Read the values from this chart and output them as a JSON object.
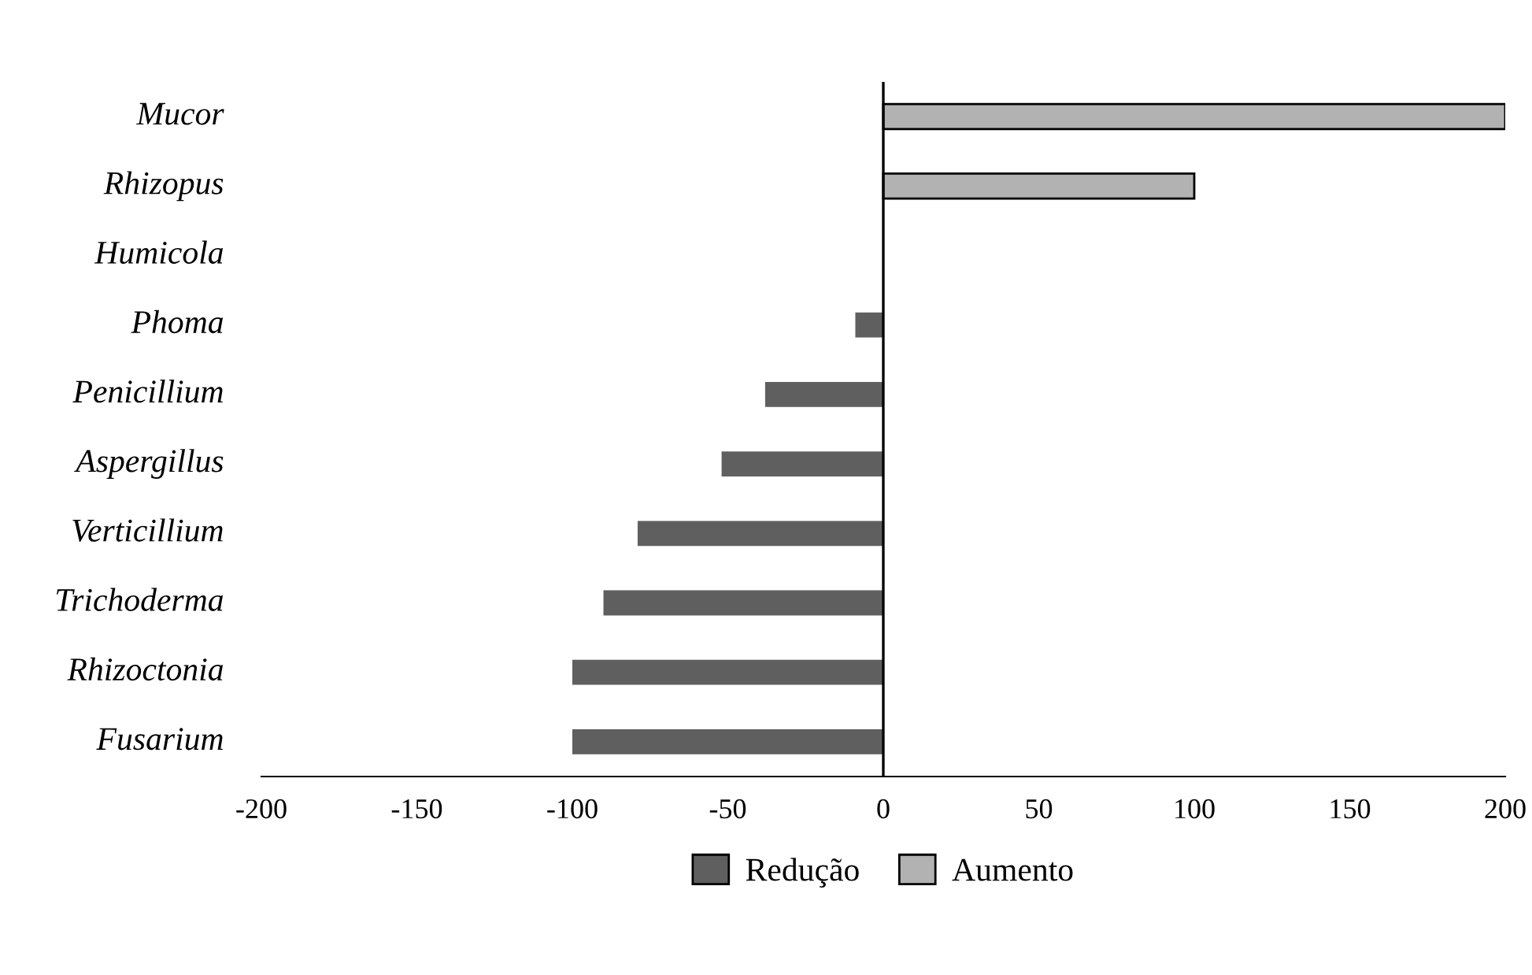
{
  "chart_data": {
    "type": "bar",
    "orientation": "horizontal",
    "categories": [
      "Mucor",
      "Rhizopus",
      "Humicola",
      "Phoma",
      "Penicillium",
      "Aspergillus",
      "Verticillium",
      "Trichoderma",
      "Rhizoctonia",
      "Fusarium"
    ],
    "series": [
      {
        "name": "Redução",
        "color": "#5f5f5f",
        "values": [
          null,
          null,
          0,
          -9,
          -38,
          -52,
          -79,
          -90,
          -100,
          -100
        ]
      },
      {
        "name": "Aumento",
        "color": "#b2b2b2",
        "values": [
          200,
          100,
          null,
          null,
          null,
          null,
          null,
          null,
          null,
          null
        ]
      }
    ],
    "xlim": [
      -200,
      200
    ],
    "xticks": [
      -200,
      -150,
      -100,
      -50,
      0,
      50,
      100,
      150,
      200
    ],
    "ref_lines": [
      {
        "axis": "x",
        "value": 0,
        "color": "#000000"
      }
    ],
    "grid": false,
    "legend": "bottom"
  }
}
